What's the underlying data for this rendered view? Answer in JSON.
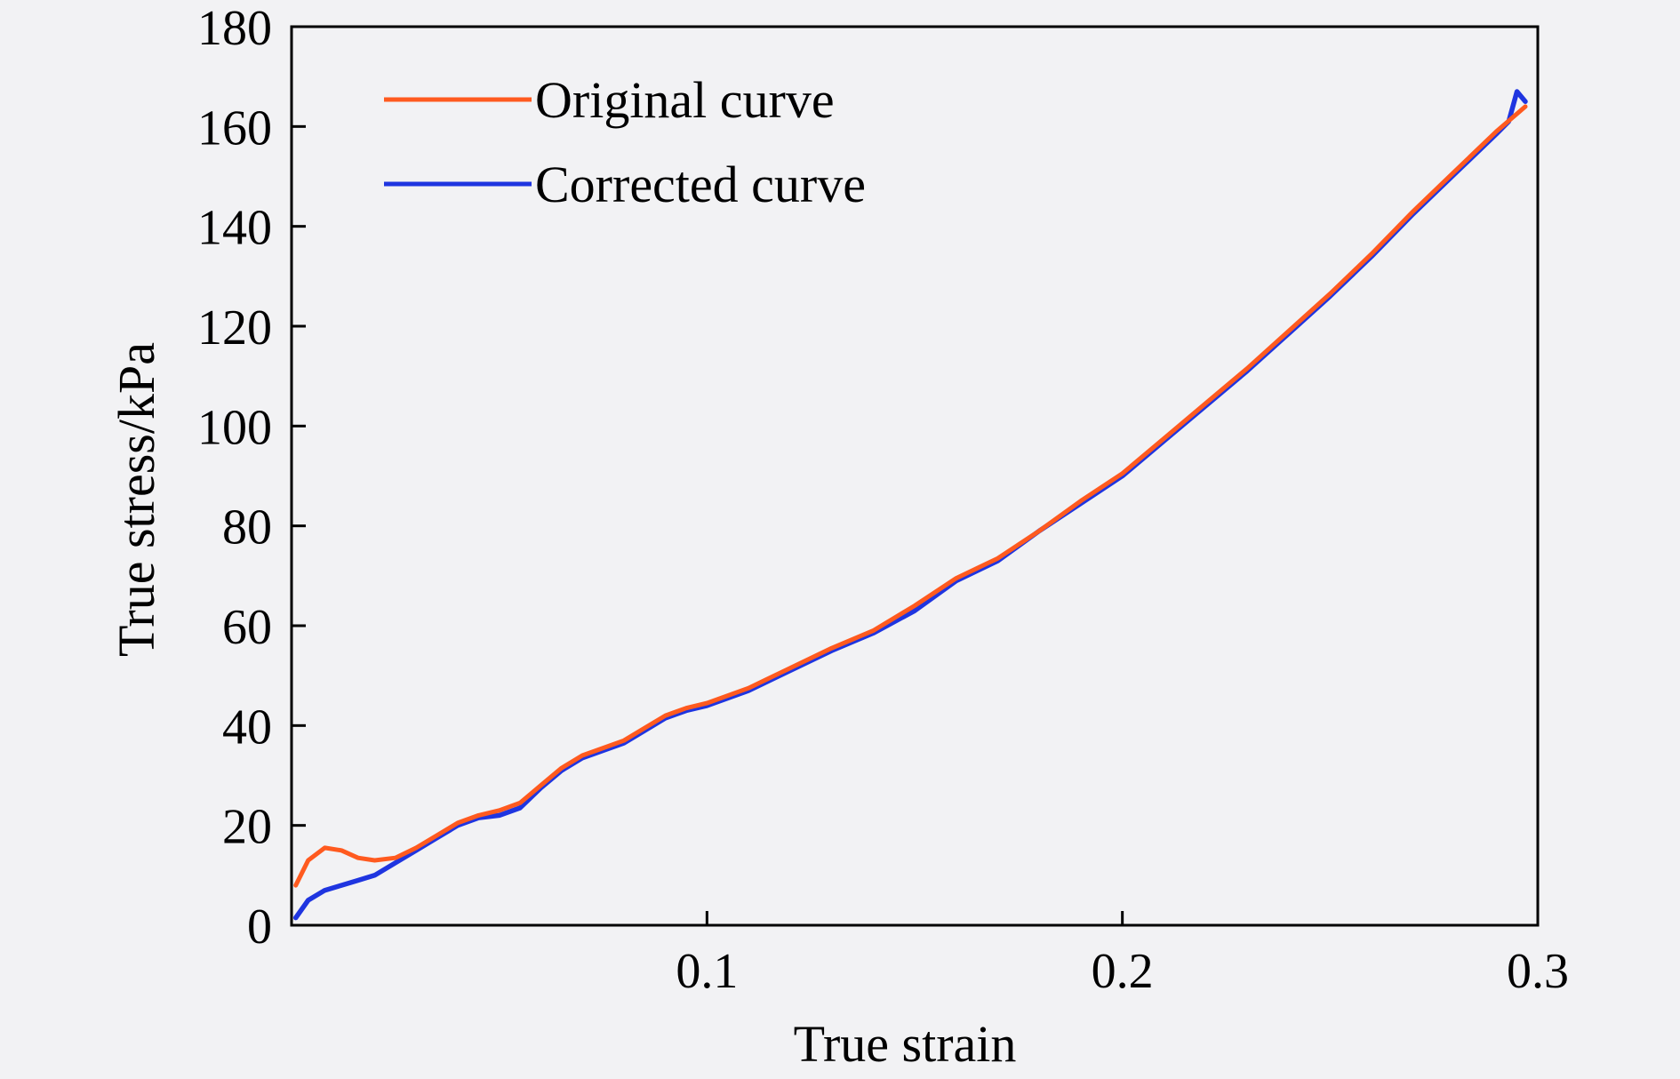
{
  "chart_data": {
    "type": "line",
    "title": "",
    "xlabel": "True strain",
    "ylabel": "True stress/kPa",
    "xlim": [
      0,
      0.3
    ],
    "ylim": [
      0,
      180
    ],
    "x_ticks": [
      0.1,
      0.2,
      0.3
    ],
    "x_tick_labels": [
      "0.1",
      "0.2",
      "0.3"
    ],
    "y_ticks": [
      0,
      20,
      40,
      60,
      80,
      100,
      120,
      140,
      160,
      180
    ],
    "y_tick_labels": [
      "0",
      "20",
      "40",
      "60",
      "80",
      "100",
      "120",
      "140",
      "160",
      "180"
    ],
    "grid": false,
    "legend_position": "top-left",
    "series": [
      {
        "name": "Original curve",
        "color": "#ff5a1f",
        "x": [
          0.001,
          0.004,
          0.008,
          0.012,
          0.016,
          0.02,
          0.025,
          0.03,
          0.035,
          0.04,
          0.045,
          0.05,
          0.055,
          0.06,
          0.065,
          0.07,
          0.075,
          0.08,
          0.085,
          0.09,
          0.095,
          0.1,
          0.11,
          0.12,
          0.13,
          0.14,
          0.15,
          0.16,
          0.17,
          0.18,
          0.19,
          0.2,
          0.21,
          0.22,
          0.23,
          0.24,
          0.25,
          0.26,
          0.27,
          0.28,
          0.29,
          0.297
        ],
        "y": [
          8,
          13,
          15.5,
          15,
          13.5,
          13,
          13.5,
          15.5,
          18,
          20.5,
          22,
          23,
          24.5,
          28,
          31.5,
          34,
          35.5,
          37,
          39.5,
          42,
          43.5,
          44.5,
          47.5,
          51.5,
          55.5,
          59,
          64,
          69.5,
          73.5,
          79,
          85,
          90.5,
          97.5,
          104.5,
          111.5,
          119,
          126.5,
          134.5,
          143,
          151,
          159,
          164
        ]
      },
      {
        "name": "Corrected curve",
        "color": "#1f35e0",
        "x": [
          0.001,
          0.004,
          0.008,
          0.012,
          0.016,
          0.02,
          0.025,
          0.03,
          0.035,
          0.04,
          0.045,
          0.05,
          0.055,
          0.06,
          0.065,
          0.07,
          0.075,
          0.08,
          0.085,
          0.09,
          0.095,
          0.1,
          0.11,
          0.12,
          0.13,
          0.14,
          0.15,
          0.16,
          0.17,
          0.18,
          0.19,
          0.2,
          0.21,
          0.22,
          0.23,
          0.24,
          0.25,
          0.26,
          0.27,
          0.28,
          0.29,
          0.293,
          0.295,
          0.297
        ],
        "y": [
          1.5,
          5,
          7,
          8,
          9,
          10,
          12.5,
          15,
          17.5,
          20,
          21.5,
          22,
          23.5,
          27.5,
          31,
          33.5,
          35,
          36.5,
          39,
          41.5,
          43,
          44,
          47,
          51,
          55,
          58.5,
          63,
          69,
          73,
          79,
          84.5,
          90,
          97,
          104,
          111,
          118.5,
          126,
          134,
          142.5,
          150.5,
          158.5,
          161,
          167,
          165
        ]
      }
    ]
  }
}
